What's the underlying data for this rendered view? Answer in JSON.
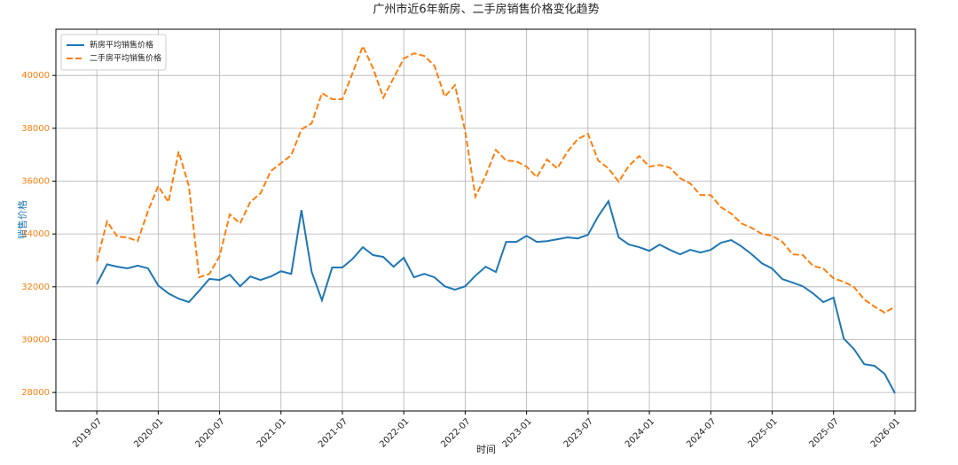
{
  "chart_data": {
    "type": "line",
    "title": "广州市近6年新房、二手房销售价格变化趋势",
    "xlabel": "时间",
    "ylabel": "销售价格",
    "ylabel_color": "#1f77b4",
    "ytick_label_color": "#ff7f0e",
    "grid": true,
    "legend": "upper left",
    "x": [
      "2019-07",
      "2019-08",
      "2019-09",
      "2019-10",
      "2019-11",
      "2019-12",
      "2020-01",
      "2020-02",
      "2020-03",
      "2020-04",
      "2020-05",
      "2020-06",
      "2020-07",
      "2020-08",
      "2020-09",
      "2020-10",
      "2020-11",
      "2020-12",
      "2021-01",
      "2021-02",
      "2021-03",
      "2021-04",
      "2021-05",
      "2021-06",
      "2021-07",
      "2021-08",
      "2021-09",
      "2021-10",
      "2021-11",
      "2021-12",
      "2022-01",
      "2022-02",
      "2022-03",
      "2022-04",
      "2022-05",
      "2022-06",
      "2022-07",
      "2022-08",
      "2022-09",
      "2022-10",
      "2022-11",
      "2022-12",
      "2023-01",
      "2023-02",
      "2023-03",
      "2023-04",
      "2023-05",
      "2023-06",
      "2023-07",
      "2023-08",
      "2023-09",
      "2023-10",
      "2023-11",
      "2023-12",
      "2024-01",
      "2024-02",
      "2024-03",
      "2024-04",
      "2024-05",
      "2024-06",
      "2024-07",
      "2024-08",
      "2024-09",
      "2024-10",
      "2024-11",
      "2024-12",
      "2025-01",
      "2025-02",
      "2025-03",
      "2025-04",
      "2025-05",
      "2025-06",
      "2025-07",
      "2025-08",
      "2025-09",
      "2025-10",
      "2025-11",
      "2025-12",
      "2026-01"
    ],
    "series": [
      {
        "name": "新房平均销售价格",
        "color": "#1f77b4",
        "linestyle": "solid",
        "values": [
          32100,
          32850,
          32760,
          32700,
          32800,
          32700,
          32050,
          31750,
          31550,
          31420,
          31850,
          32300,
          32260,
          32460,
          32020,
          32390,
          32260,
          32390,
          32590,
          32490,
          34900,
          32560,
          31490,
          32730,
          32730,
          33060,
          33500,
          33200,
          33130,
          32760,
          33100,
          32360,
          32490,
          32360,
          32020,
          31890,
          32020,
          32420,
          32760,
          32560,
          33700,
          33700,
          33930,
          33700,
          33730,
          33800,
          33870,
          33830,
          33970,
          34670,
          35240,
          33870,
          33600,
          33500,
          33360,
          33600,
          33400,
          33230,
          33400,
          33300,
          33400,
          33670,
          33770,
          33530,
          33230,
          32890,
          32690,
          32290,
          32160,
          32020,
          31750,
          31420,
          31590,
          30040,
          29640,
          29070,
          29010,
          28700,
          27970
        ]
      },
      {
        "name": "二手房平均销售价格",
        "color": "#ff7f0e",
        "linestyle": "dashed",
        "values": [
          32960,
          34470,
          33900,
          33870,
          33730,
          34870,
          35810,
          35210,
          37120,
          35810,
          32360,
          32490,
          33160,
          34740,
          34400,
          35210,
          35540,
          36380,
          36680,
          36980,
          37960,
          38190,
          39330,
          39100,
          39100,
          40100,
          41110,
          40270,
          39160,
          39900,
          40640,
          40840,
          40740,
          40370,
          39200,
          39630,
          37890,
          35410,
          36210,
          37180,
          36780,
          36750,
          36550,
          36150,
          36820,
          36480,
          37120,
          37590,
          37790,
          36780,
          36480,
          35980,
          36580,
          36950,
          36550,
          36610,
          36510,
          36110,
          35910,
          35470,
          35470,
          35010,
          34770,
          34400,
          34230,
          34000,
          33930,
          33700,
          33230,
          33200,
          32790,
          32690,
          32320,
          32190,
          31990,
          31520,
          31250,
          31020,
          31250
        ]
      }
    ],
    "xlim": [
      "2019-03",
      "2026-03"
    ],
    "xticks": [
      "2019-07",
      "2020-01",
      "2020-07",
      "2021-01",
      "2021-07",
      "2022-01",
      "2022-07",
      "2023-01",
      "2023-07",
      "2024-01",
      "2024-07",
      "2025-01",
      "2025-07",
      "2026-01"
    ],
    "ylim": [
      27300,
      41750
    ],
    "yticks": [
      28000,
      30000,
      32000,
      34000,
      36000,
      38000,
      40000
    ]
  }
}
